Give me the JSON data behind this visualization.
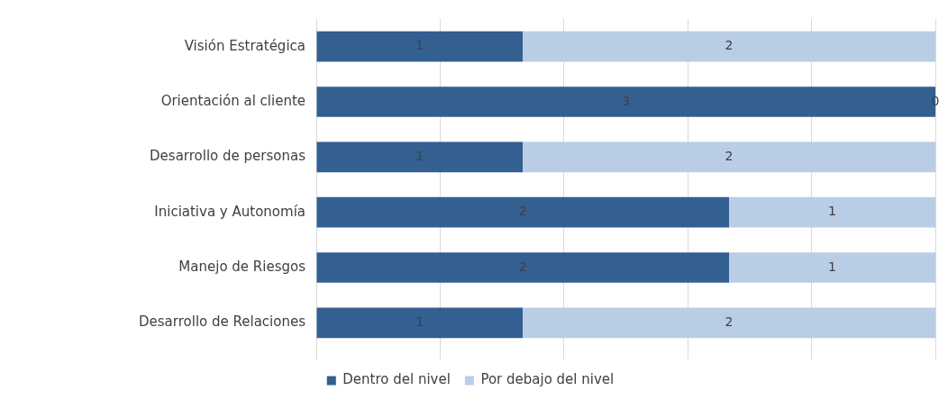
{
  "chart_data": {
    "type": "bar",
    "orientation": "horizontal",
    "stacked": true,
    "categories": [
      "Visión Estratégica",
      "Orientación al cliente",
      "Desarrollo de personas",
      "Iniciativa y Autonomía",
      "Manejo de Riesgos",
      "Desarrollo de Relaciones"
    ],
    "series": [
      {
        "name": "Dentro del nivel",
        "color": "#335f91",
        "values": [
          1,
          3,
          1,
          2,
          2,
          1
        ]
      },
      {
        "name": "Por debajo del nivel",
        "color": "#b9cde5",
        "values": [
          2,
          0,
          2,
          1,
          1,
          2
        ]
      }
    ],
    "xlim": [
      0,
      3
    ],
    "xticks": [
      {
        "value": 0,
        "label": null
      },
      {
        "value": 0.6,
        "label": null
      },
      {
        "value": 1.2,
        "label": null
      },
      {
        "value": 1.8,
        "label": null
      },
      {
        "value": 2.4,
        "label": null
      },
      {
        "value": 3,
        "label": null
      }
    ],
    "tick_labels": "y",
    "grid": "x",
    "legend": "bottom",
    "data_labels": true
  }
}
